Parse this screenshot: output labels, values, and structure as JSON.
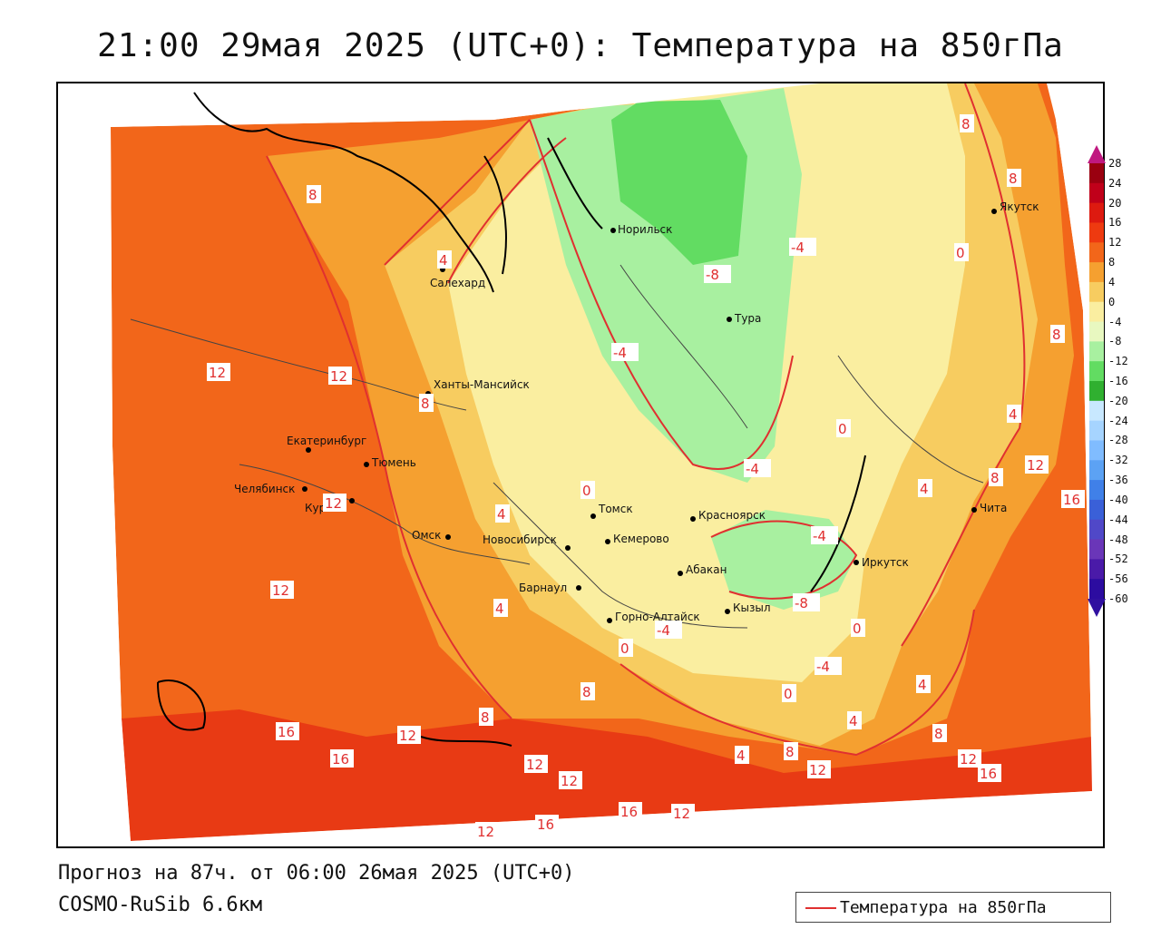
{
  "title": "21:00 29мая 2025 (UTC+0): Температура на 850гПа",
  "footer": {
    "forecast": "Прогноз на 87ч. от 06:00 26мая 2025 (UTC+0)",
    "model": "COSMO-RuSib 6.6км"
  },
  "legend": {
    "label": "Температура на 850гПа",
    "line_color": "#e03030"
  },
  "colorbar": {
    "labels": [
      "28",
      "24",
      "20",
      "16",
      "12",
      "8",
      "4",
      "0",
      "-4",
      "-8",
      "-12",
      "-16",
      "-20",
      "-24",
      "-28",
      "-32",
      "-36",
      "-40",
      "-44",
      "-48",
      "-52",
      "-56",
      "-60"
    ],
    "colors": [
      "#9a0010",
      "#c0001a",
      "#dd1a10",
      "#ee3a10",
      "#f2661a",
      "#f5a030",
      "#f7cc60",
      "#faeea0",
      "#e8f8c0",
      "#a8f0a0",
      "#62dc62",
      "#30b030",
      "#c8e8ff",
      "#a6d4ff",
      "#80bcff",
      "#5ca2f4",
      "#4080e8",
      "#3a60d8",
      "#5048c8",
      "#6a36b8",
      "#4a1aa8",
      "#2c0ca0"
    ]
  },
  "cities": [
    {
      "name": "Норильск"
    },
    {
      "name": "Салехард"
    },
    {
      "name": "Тура"
    },
    {
      "name": "Ханты-Мансийск"
    },
    {
      "name": "Екатеринбург"
    },
    {
      "name": "Тюмень"
    },
    {
      "name": "Челябинск"
    },
    {
      "name": "Курган"
    },
    {
      "name": "Омск"
    },
    {
      "name": "Томск"
    },
    {
      "name": "Новосибирск"
    },
    {
      "name": "Кемерово"
    },
    {
      "name": "Красноярск"
    },
    {
      "name": "Барнаул"
    },
    {
      "name": "Абакан"
    },
    {
      "name": "Горно-Алтайск"
    },
    {
      "name": "Кызыл"
    },
    {
      "name": "Иркутск"
    },
    {
      "name": "Чита"
    },
    {
      "name": "Якутск"
    }
  ],
  "isotherm_labels": [
    "8",
    "4",
    "0",
    "-4",
    "-8",
    "-4",
    "-4",
    "0",
    "12",
    "12",
    "8",
    "12",
    "12",
    "4",
    "0",
    "-4",
    "-4",
    "-8",
    "0",
    "4",
    "8",
    "12",
    "16",
    "8",
    "4",
    "8",
    "12",
    "16",
    "16",
    "12",
    "12",
    "12",
    "16",
    "16",
    "12",
    "8",
    "4",
    "8",
    "12",
    "12",
    "16",
    "-4",
    "0",
    "4",
    "8",
    "8",
    "4",
    "0",
    "8",
    "4"
  ]
}
